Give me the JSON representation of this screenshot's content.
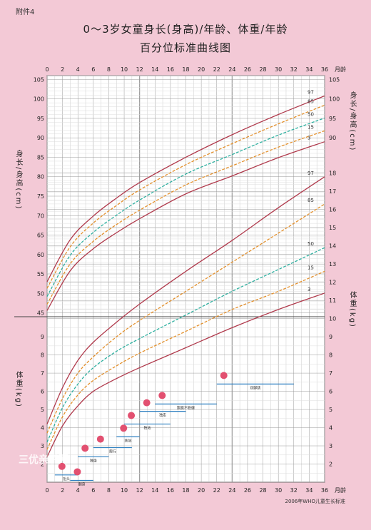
{
  "header": {
    "tag": "附件4",
    "title_line1": "0～3岁女童身长(身高)/年龄、体重/年龄",
    "title_line2": "百分位标准曲线图"
  },
  "axes": {
    "month_unit_top": "月龄",
    "month_unit_bottom": "月龄",
    "height_label": "身长/身高(cm)",
    "weight_label": "体重(kg)"
  },
  "footer": "2006年WHO儿童生长标准",
  "watermark": "三优亲子网",
  "colors": {
    "p97": "#b03a4c",
    "p85": "#e3902c",
    "p50": "#2fb0a0",
    "p15": "#e3902c",
    "p3": "#b03a4c"
  },
  "milestones": [
    {
      "label": "抬头",
      "month_start": 1,
      "month_end": 4,
      "weight_y": 1.4
    },
    {
      "label": "翻身",
      "month_start": 3,
      "month_end": 6,
      "weight_y": 1.1
    },
    {
      "label": "独坐",
      "month_start": 4,
      "month_end": 8,
      "weight_y": 2.4
    },
    {
      "label": "爬行",
      "month_start": 6,
      "month_end": 11,
      "weight_y": 2.9
    },
    {
      "label": "扶站",
      "month_start": 9,
      "month_end": 12,
      "weight_y": 3.5
    },
    {
      "label": "独站",
      "month_start": 10,
      "month_end": 16,
      "weight_y": 4.2
    },
    {
      "label": "独走",
      "month_start": 12,
      "month_end": 18,
      "weight_y": 4.9
    },
    {
      "label": "跑跳不稳健",
      "month_start": 14,
      "month_end": 22,
      "weight_y": 5.3
    },
    {
      "label": "双脚跳",
      "month_start": 22,
      "month_end": 32,
      "weight_y": 6.4
    }
  ],
  "chart_data": [
    {
      "type": "line",
      "title": "0～3岁女童身长(身高)/年龄",
      "xlabel": "月龄",
      "ylabel": "身长/身高(cm)",
      "xlim": [
        0,
        36
      ],
      "ylim": [
        44,
        106
      ],
      "x": [
        0,
        3,
        6,
        9,
        12,
        18,
        24,
        30,
        36
      ],
      "series": [
        {
          "name": "97",
          "values": [
            53.0,
            63.8,
            69.9,
            74.5,
            78.5,
            85.0,
            90.8,
            96.0,
            100.8
          ]
        },
        {
          "name": "85",
          "values": [
            51.3,
            62.0,
            68.1,
            72.6,
            76.6,
            83.1,
            88.5,
            93.6,
            98.4
          ]
        },
        {
          "name": "50",
          "values": [
            49.2,
            59.8,
            65.7,
            70.1,
            74.0,
            80.7,
            85.7,
            90.7,
            95.1
          ]
        },
        {
          "name": "15",
          "values": [
            47.2,
            57.6,
            63.4,
            67.7,
            71.4,
            77.9,
            82.8,
            87.6,
            91.8
          ]
        },
        {
          "name": "3",
          "values": [
            45.6,
            55.8,
            61.5,
            65.6,
            69.2,
            75.6,
            80.2,
            84.9,
            89.0
          ]
        }
      ],
      "right_ticks": [
        90,
        95,
        100,
        105
      ]
    },
    {
      "type": "line",
      "title": "0～3岁女童体重/年龄",
      "xlabel": "月龄",
      "ylabel": "体重(kg)",
      "xlim": [
        0,
        36
      ],
      "ylim": [
        1,
        18.5
      ],
      "x": [
        0,
        2,
        4,
        6,
        9,
        12,
        18,
        24,
        30,
        36
      ],
      "series": [
        {
          "name": "97",
          "values": [
            4.2,
            6.2,
            7.7,
            8.7,
            9.8,
            10.8,
            12.6,
            14.3,
            16.1,
            17.8
          ]
        },
        {
          "name": "85",
          "values": [
            3.7,
            5.6,
            7.0,
            7.9,
            9.0,
            9.9,
            11.5,
            13.1,
            14.7,
            16.3
          ]
        },
        {
          "name": "50",
          "values": [
            3.2,
            5.1,
            6.4,
            7.3,
            8.2,
            8.9,
            10.2,
            11.5,
            12.7,
            13.9
          ]
        },
        {
          "name": "15",
          "values": [
            2.8,
            4.6,
            5.8,
            6.6,
            7.4,
            8.1,
            9.3,
            10.5,
            11.5,
            12.6
          ]
        },
        {
          "name": "3",
          "values": [
            2.4,
            4.1,
            5.2,
            6.0,
            6.7,
            7.3,
            8.4,
            9.5,
            10.5,
            11.4
          ]
        }
      ],
      "right_ticks": [
        2,
        3,
        4,
        5,
        6,
        7,
        8,
        9,
        10,
        11,
        12,
        13,
        14,
        15,
        16,
        17,
        18
      ],
      "left_ticks": [
        2,
        3,
        4,
        5,
        6,
        7,
        8,
        9
      ]
    }
  ]
}
